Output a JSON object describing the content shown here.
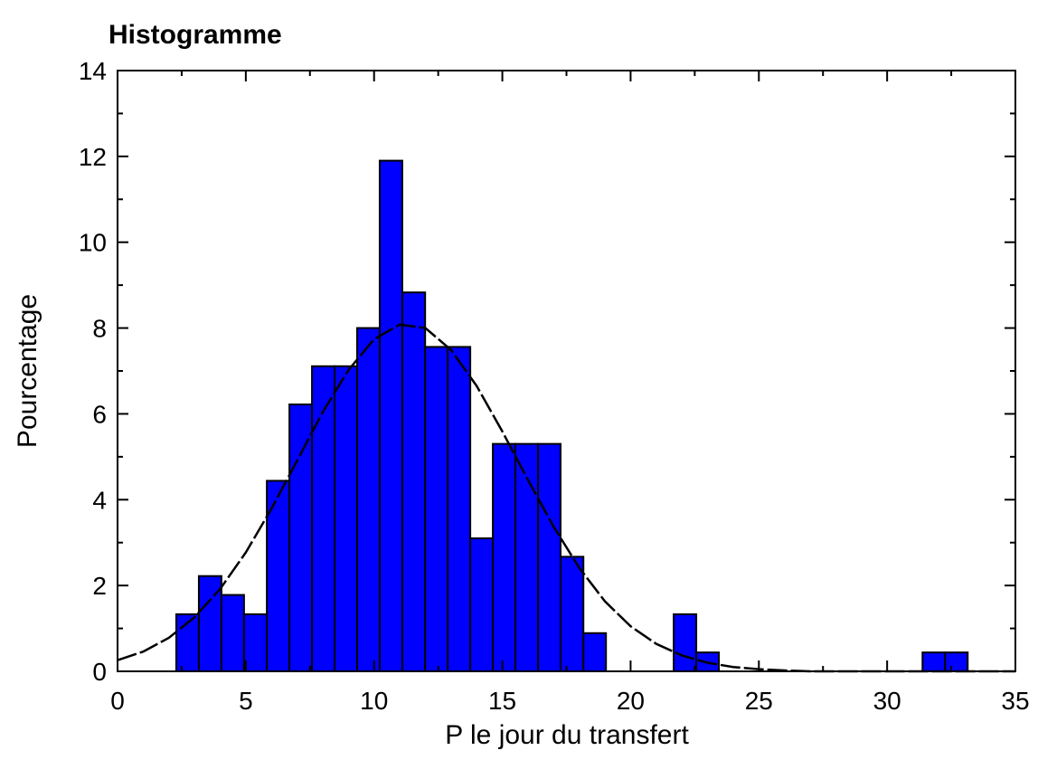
{
  "chart_data": {
    "type": "histogram",
    "title": "Histogramme",
    "x_label": "P le jour du transfert",
    "y_label": "Pourcentage",
    "bins": [
      2.29,
      3.17,
      4.05,
      4.93,
      5.82,
      6.7,
      7.58,
      8.46,
      9.34,
      10.22,
      11.1,
      11.99,
      12.87,
      13.75,
      14.63,
      15.51,
      16.39,
      17.27,
      18.16,
      19.04,
      19.92,
      20.8,
      21.68,
      22.56,
      23.44,
      24.33,
      25.21,
      26.09,
      26.97,
      27.85,
      28.73,
      29.61,
      30.49,
      31.38,
      32.26,
      33.14
    ],
    "values": [
      1.33,
      2.22,
      1.78,
      1.33,
      4.44,
      6.22,
      7.11,
      7.11,
      8.0,
      11.9,
      8.83,
      7.56,
      7.56,
      3.1,
      5.3,
      5.3,
      5.3,
      2.67,
      0.89,
      0,
      0,
      0,
      1.33,
      0.44,
      0,
      0,
      0,
      0,
      0,
      0,
      0,
      0,
      0,
      0.44,
      0.44
    ],
    "color": "#0000ff",
    "curve": {
      "x": [
        0,
        1,
        2,
        3,
        4,
        5,
        6,
        7,
        8,
        9,
        10,
        11,
        12,
        13,
        14,
        15,
        16,
        17,
        18,
        19,
        20,
        21,
        22,
        23,
        24,
        25,
        26,
        27,
        28,
        29,
        30,
        31,
        32,
        33,
        34,
        35
      ],
      "values": [
        0.26,
        0.46,
        0.78,
        1.26,
        1.92,
        2.77,
        3.79,
        4.91,
        6.04,
        7.02,
        7.74,
        8.08,
        8.0,
        7.49,
        6.65,
        5.59,
        4.46,
        3.37,
        2.41,
        1.63,
        1.05,
        0.64,
        0.37,
        0.2,
        0.1,
        0.05,
        0.02,
        0,
        0,
        0,
        0,
        0,
        0,
        0,
        0,
        0
      ]
    },
    "xlim": [
      0,
      35
    ],
    "xticks": [
      0,
      5,
      10,
      15,
      20,
      25,
      30,
      35
    ],
    "ylim": [
      0,
      14
    ],
    "yticks": [
      0,
      2,
      4,
      6,
      8,
      10,
      12,
      14
    ]
  }
}
